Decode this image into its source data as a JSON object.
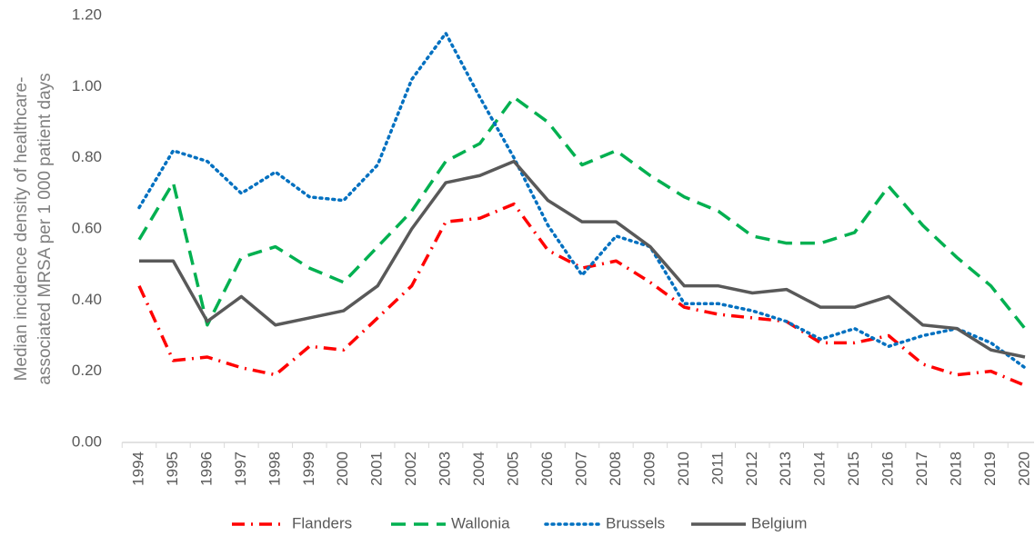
{
  "chart_data": {
    "type": "line",
    "y_label": [
      "Median incidence density of healthcare-",
      "associated MRSA per 1 000 patient days"
    ],
    "categories": [
      "1994",
      "1995",
      "1996",
      "1997",
      "1998",
      "1999",
      "2000",
      "2001",
      "2002",
      "2003",
      "2004",
      "2005",
      "2006",
      "2007",
      "2008",
      "2009",
      "2010",
      "2011",
      "2012",
      "2013",
      "2014",
      "2015",
      "2016",
      "2017",
      "2018",
      "2019",
      "2020"
    ],
    "series": [
      {
        "name": "Flanders",
        "color": "#ff0000",
        "style": "dashdot",
        "values": [
          0.44,
          0.23,
          0.24,
          0.21,
          0.19,
          0.27,
          0.26,
          0.35,
          0.44,
          0.62,
          0.63,
          0.67,
          0.54,
          0.49,
          0.51,
          0.45,
          0.38,
          0.36,
          0.35,
          0.34,
          0.28,
          0.28,
          0.3,
          0.22,
          0.19,
          0.2,
          0.16
        ]
      },
      {
        "name": "Wallonia",
        "color": "#00b050",
        "style": "dash",
        "values": [
          0.57,
          0.73,
          0.33,
          0.52,
          0.55,
          0.49,
          0.45,
          0.55,
          0.65,
          0.79,
          0.84,
          0.97,
          0.9,
          0.78,
          0.82,
          0.75,
          0.69,
          0.65,
          0.58,
          0.56,
          0.56,
          0.59,
          0.72,
          0.61,
          0.52,
          0.44,
          0.32
        ]
      },
      {
        "name": "Brussels",
        "color": "#0070c0",
        "style": "dot",
        "values": [
          0.66,
          0.82,
          0.79,
          0.7,
          0.76,
          0.69,
          0.68,
          0.78,
          1.02,
          1.15,
          0.97,
          0.8,
          0.61,
          0.47,
          0.58,
          0.55,
          0.39,
          0.39,
          0.37,
          0.34,
          0.29,
          0.32,
          0.27,
          0.3,
          0.32,
          0.28,
          0.21
        ]
      },
      {
        "name": "Belgium",
        "color": "#595959",
        "style": "solid",
        "values": [
          0.51,
          0.51,
          0.34,
          0.41,
          0.33,
          0.35,
          0.37,
          0.44,
          0.6,
          0.73,
          0.75,
          0.79,
          0.68,
          0.62,
          0.62,
          0.55,
          0.44,
          0.44,
          0.42,
          0.43,
          0.38,
          0.38,
          0.41,
          0.33,
          0.32,
          0.26,
          0.24
        ]
      }
    ],
    "ylim": [
      0,
      1.2
    ],
    "yticks": [
      {
        "value": 0,
        "label": "0.00"
      },
      {
        "value": 0.2,
        "label": "0.20"
      },
      {
        "value": 0.4,
        "label": "0.40"
      },
      {
        "value": 0.6,
        "label": "0.60"
      },
      {
        "value": 0.8,
        "label": "0.80"
      },
      {
        "value": 1,
        "label": "1.00"
      },
      {
        "value": 1.2,
        "label": "1.20"
      }
    ],
    "grid": false,
    "legend": "bottom"
  }
}
